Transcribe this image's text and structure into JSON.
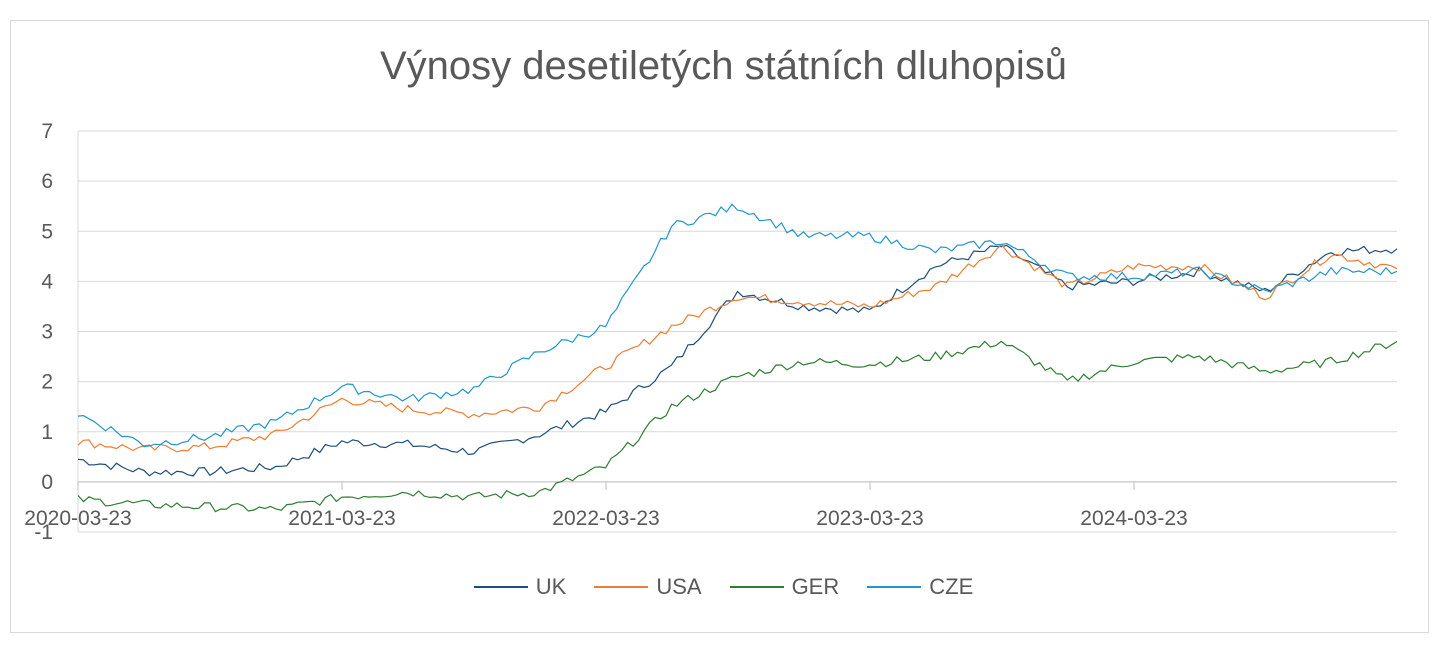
{
  "chart_data": {
    "type": "line",
    "title": "Výnosy desetiletých státních dluhopisů",
    "xlabel": "",
    "ylabel": "",
    "ylim": [
      -1,
      7
    ],
    "yticks": [
      "7",
      "6",
      "5",
      "4",
      "3",
      "2",
      "1",
      "0",
      "-1"
    ],
    "xticks": [
      "2020-03-23",
      "2021-03-23",
      "2022-03-23",
      "2023-03-23",
      "2024-03-23"
    ],
    "x": [
      "2020-03",
      "2020-06",
      "2020-09",
      "2020-12",
      "2021-03",
      "2021-06",
      "2021-09",
      "2021-12",
      "2022-03",
      "2022-06",
      "2022-09",
      "2022-12",
      "2023-03",
      "2023-06",
      "2023-09",
      "2023-12",
      "2024-03",
      "2024-06",
      "2024-09",
      "2024-12",
      "2025-02"
    ],
    "series": [
      {
        "name": "UK",
        "color": "#1f4e79",
        "values": [
          0.45,
          0.2,
          0.2,
          0.3,
          0.8,
          0.75,
          0.6,
          0.95,
          1.4,
          2.3,
          3.8,
          3.5,
          3.4,
          4.3,
          4.7,
          3.9,
          4.0,
          4.2,
          3.8,
          4.6,
          4.65
        ]
      },
      {
        "name": "USA",
        "color": "#ed7d31",
        "values": [
          0.8,
          0.65,
          0.7,
          0.95,
          1.65,
          1.45,
          1.35,
          1.5,
          2.3,
          3.1,
          3.7,
          3.6,
          3.5,
          3.9,
          4.7,
          3.9,
          4.3,
          4.3,
          3.7,
          4.55,
          4.25
        ]
      },
      {
        "name": "GER",
        "color": "#2e7d32",
        "values": [
          -0.35,
          -0.45,
          -0.5,
          -0.55,
          -0.3,
          -0.2,
          -0.3,
          -0.2,
          0.3,
          1.5,
          2.1,
          2.4,
          2.35,
          2.5,
          2.8,
          2.0,
          2.4,
          2.5,
          2.2,
          2.4,
          2.8
        ]
      },
      {
        "name": "CZE",
        "color": "#2196c8",
        "values": [
          1.35,
          0.75,
          0.9,
          1.2,
          1.9,
          1.65,
          1.85,
          2.6,
          3.1,
          5.1,
          5.5,
          4.9,
          4.9,
          4.6,
          4.8,
          4.1,
          4.1,
          4.2,
          3.8,
          4.2,
          4.2
        ]
      }
    ],
    "grid": true,
    "legend_position": "bottom"
  }
}
